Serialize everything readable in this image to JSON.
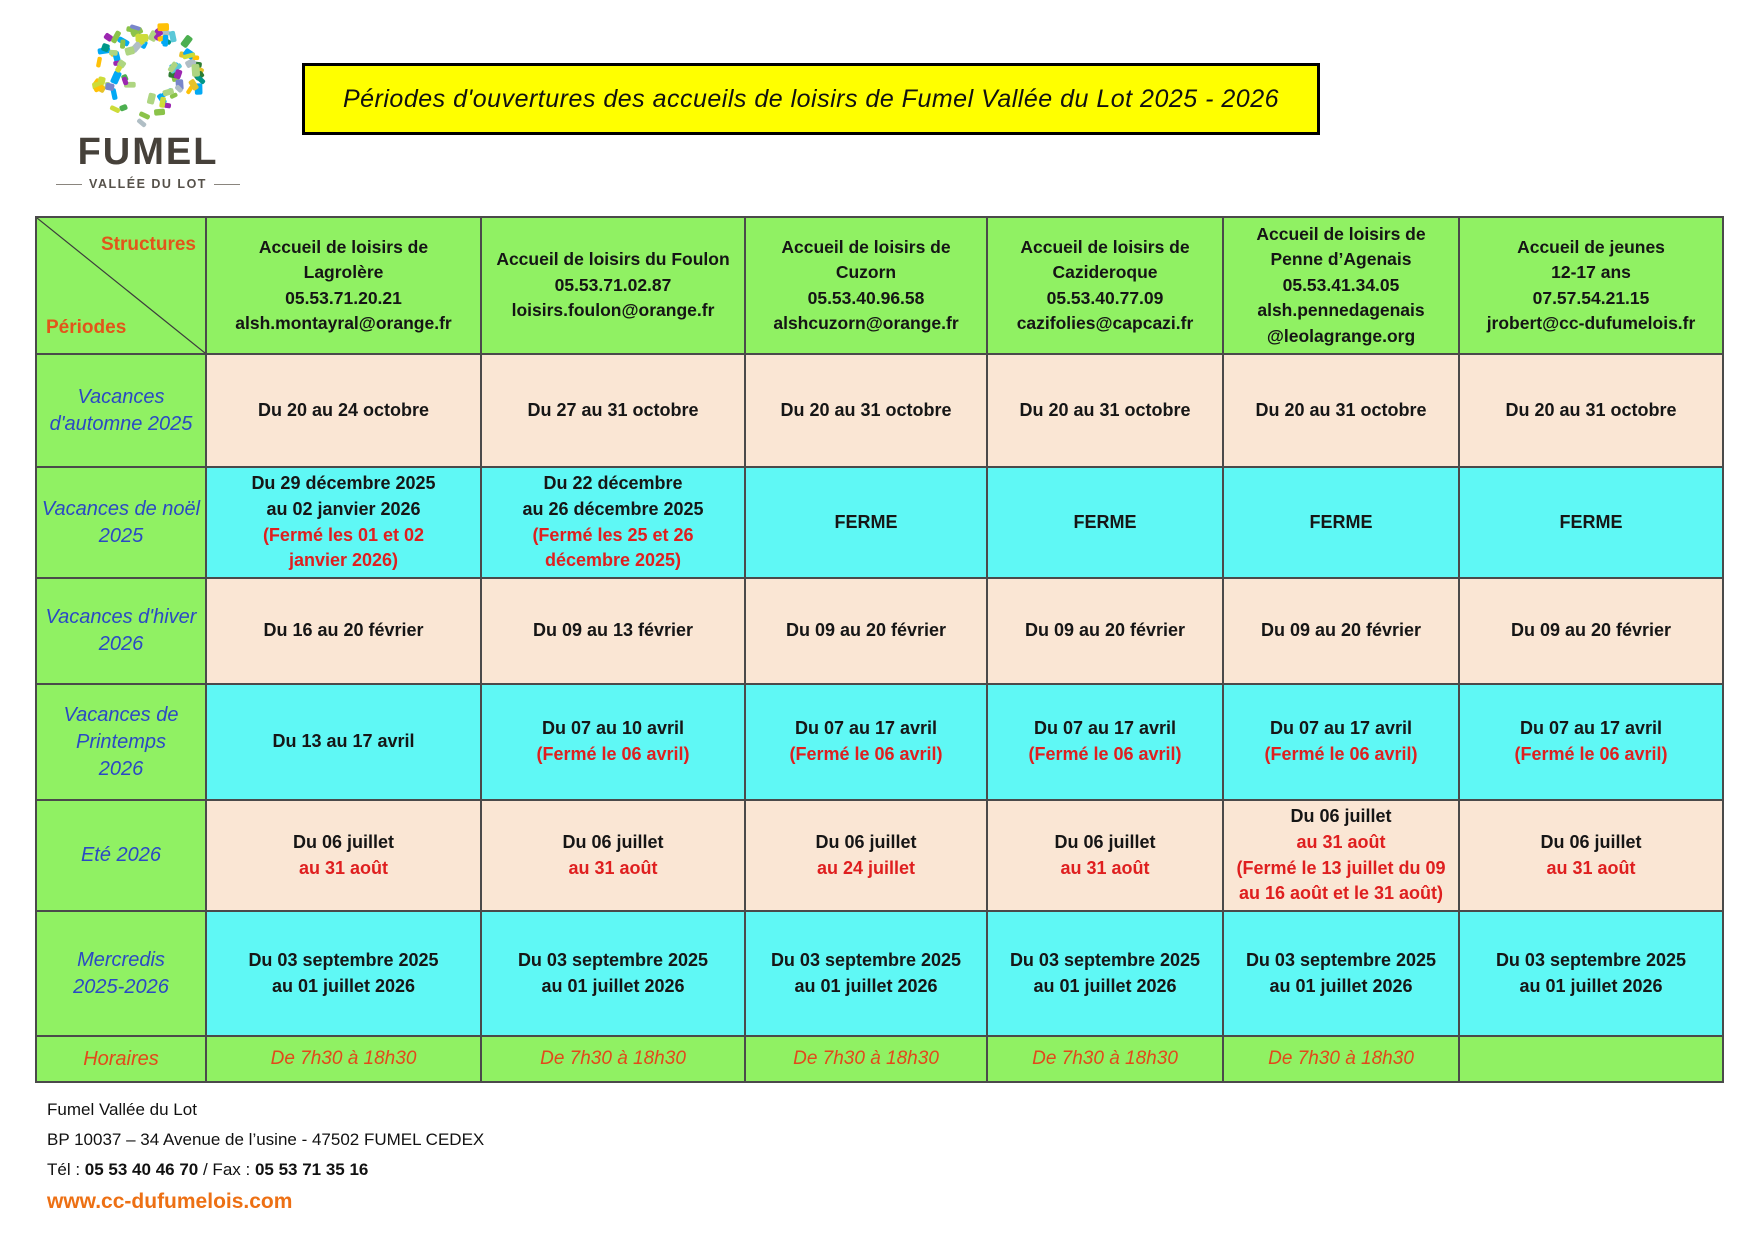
{
  "colors": {
    "green": "#90F163",
    "cyan": "#5FF8F5",
    "peach": "#FAE6D4",
    "yellow": "#FFFF00",
    "red": "#DF1F1F",
    "blue": "#2B49C4",
    "orange": "#E2551A",
    "orange2": "#E2491A",
    "linkorange": "#ED7014"
  },
  "logo": {
    "title": "FUMEL",
    "subtitle": "VALLÉE DU LOT",
    "palette": [
      "#4caf50",
      "#8bc34a",
      "#ffc107",
      "#03a9f4",
      "#009688",
      "#9c27b0",
      "#cddc39",
      "#b0bec5",
      "#2e7d32",
      "#e6c229",
      "#7986cb",
      "#aed581",
      "#5bc8d8"
    ]
  },
  "banner": {
    "title": "Périodes d'ouvertures des accueils de loisirs de Fumel Vallée du Lot 2025 - 2026"
  },
  "table": {
    "corner": {
      "top_label": "Structures",
      "bottom_label": "Périodes"
    },
    "columns": [
      {
        "lines": [
          "Accueil de loisirs de",
          "Lagrolère",
          "05.53.71.20.21",
          "alsh.montayral@orange.fr"
        ]
      },
      {
        "lines": [
          "Accueil de loisirs du Foulon",
          "05.53.71.02.87",
          "loisirs.foulon@orange.fr"
        ]
      },
      {
        "lines": [
          "Accueil de loisirs de",
          "Cuzorn",
          "05.53.40.96.58",
          "alshcuzorn@orange.fr"
        ]
      },
      {
        "lines": [
          "Accueil de loisirs de",
          "Cazideroque",
          "05.53.40.77.09",
          "cazifolies@capcazi.fr"
        ]
      },
      {
        "lines": [
          "Accueil de loisirs de",
          "Penne d’Agenais",
          "05.53.41.34.05",
          "alsh.pennedagenais",
          "@leolagrange.org"
        ]
      },
      {
        "lines": [
          "Accueil de jeunes",
          "12-17 ans",
          "07.57.54.21.15",
          "jrobert@cc-dufumelois.fr"
        ]
      }
    ],
    "rows": [
      {
        "label": "Vacances\nd'automne 2025",
        "bg": "peach",
        "cells": [
          [
            {
              "text": "Du 20 au 24 octobre"
            }
          ],
          [
            {
              "text": "Du 27 au 31 octobre"
            }
          ],
          [
            {
              "text": "Du 20 au 31 octobre"
            }
          ],
          [
            {
              "text": "Du 20 au 31 octobre"
            }
          ],
          [
            {
              "text": "Du 20 au 31 octobre"
            }
          ],
          [
            {
              "text": "Du 20 au 31 octobre"
            }
          ]
        ]
      },
      {
        "label": "Vacances de noël\n2025",
        "bg": "cyan",
        "cells": [
          [
            {
              "text": "Du 29 décembre 2025"
            },
            {
              "text": "au 02 janvier 2026"
            },
            {
              "text": "(Fermé les 01 et 02",
              "style": "red"
            },
            {
              "text": "janvier 2026)",
              "style": "red"
            }
          ],
          [
            {
              "text": "Du 22 décembre"
            },
            {
              "text": "au 26 décembre 2025"
            },
            {
              "text": "(Fermé les 25 et 26",
              "style": "red"
            },
            {
              "text": "décembre 2025)",
              "style": "red"
            }
          ],
          [
            {
              "text": "FERME"
            }
          ],
          [
            {
              "text": "FERME"
            }
          ],
          [
            {
              "text": "FERME"
            }
          ],
          [
            {
              "text": "FERME"
            }
          ]
        ]
      },
      {
        "label": "Vacances d'hiver\n2026",
        "bg": "peach",
        "cells": [
          [
            {
              "text": "Du 16 au 20 février"
            }
          ],
          [
            {
              "text": "Du 09 au 13 février"
            }
          ],
          [
            {
              "text": "Du 09 au 20 février"
            }
          ],
          [
            {
              "text": "Du 09 au 20 février"
            }
          ],
          [
            {
              "text": "Du 09 au 20 février"
            }
          ],
          [
            {
              "text": "Du 09 au 20 février"
            }
          ]
        ]
      },
      {
        "label": "Vacances de\nPrintemps\n2026",
        "bg": "cyan",
        "cells": [
          [
            {
              "text": "Du 13 au 17 avril"
            }
          ],
          [
            {
              "text": "Du 07 au 10 avril"
            },
            {
              "text": "(Fermé le 06 avril)",
              "style": "red"
            }
          ],
          [
            {
              "text": "Du 07 au 17 avril"
            },
            {
              "text": "(Fermé le 06 avril)",
              "style": "red"
            }
          ],
          [
            {
              "text": "Du 07 au 17 avril"
            },
            {
              "text": "(Fermé le 06 avril)",
              "style": "red"
            }
          ],
          [
            {
              "text": "Du 07 au 17 avril"
            },
            {
              "text": "(Fermé le 06 avril)",
              "style": "red"
            }
          ],
          [
            {
              "text": "Du 07 au 17 avril"
            },
            {
              "text": "(Fermé le 06 avril)",
              "style": "red"
            }
          ]
        ]
      },
      {
        "label": "Eté 2026",
        "bg": "peach",
        "cells": [
          [
            {
              "text": "Du 06 juillet"
            },
            {
              "text": "au 31 août",
              "style": "red"
            }
          ],
          [
            {
              "text": "Du 06 juillet"
            },
            {
              "text": "au 31 août",
              "style": "red"
            }
          ],
          [
            {
              "text": "Du 06 juillet"
            },
            {
              "text": "au 24 juillet",
              "style": "red"
            }
          ],
          [
            {
              "text": "Du 06 juillet"
            },
            {
              "text": "au 31 août",
              "style": "red"
            }
          ],
          [
            {
              "text": "Du 06 juillet"
            },
            {
              "text": "au 31 août",
              "style": "red"
            },
            {
              "text": "(Fermé le 13 juillet du 09",
              "style": "red"
            },
            {
              "text": "au 16 août et le 31 août)",
              "style": "red"
            }
          ],
          [
            {
              "text": "Du 06 juillet"
            },
            {
              "text": "au 31 août",
              "style": "red"
            }
          ]
        ]
      },
      {
        "label": "Mercredis\n2025-2026",
        "bg": "cyan",
        "cells": [
          [
            {
              "text": "Du 03 septembre 2025"
            },
            {
              "text": "au 01 juillet 2026"
            }
          ],
          [
            {
              "text": "Du 03 septembre 2025"
            },
            {
              "text": "au 01 juillet 2026"
            }
          ],
          [
            {
              "text": "Du 03 septembre 2025"
            },
            {
              "text": "au 01 juillet 2026"
            }
          ],
          [
            {
              "text": "Du 03 septembre 2025"
            },
            {
              "text": "au 01 juillet 2026"
            }
          ],
          [
            {
              "text": "Du 03 septembre 2025"
            },
            {
              "text": "au 01 juillet 2026"
            }
          ],
          [
            {
              "text": "Du 03 septembre 2025"
            },
            {
              "text": "au 01 juillet 2026"
            }
          ]
        ]
      },
      {
        "label": "Horaires",
        "label_style": "orange",
        "bg": "green",
        "cells": [
          [
            {
              "text": "De 7h30 à 18h30",
              "style": "orange"
            }
          ],
          [
            {
              "text": "De 7h30 à 18h30",
              "style": "orange"
            }
          ],
          [
            {
              "text": "De 7h30 à 18h30",
              "style": "orange"
            }
          ],
          [
            {
              "text": "De 7h30 à 18h30",
              "style": "orange"
            }
          ],
          [
            {
              "text": "De 7h30 à 18h30",
              "style": "orange"
            }
          ],
          []
        ]
      }
    ]
  },
  "footer": {
    "org": "Fumel Vallée du Lot",
    "address": "BP 10037 – 34 Avenue de l’usine - 47502 FUMEL CEDEX",
    "tel_label": "Tél :",
    "tel": "05 53 40 46 70",
    "fax_label": "/ Fax :",
    "fax": "05 53 71 35 16",
    "website": "www.cc-dufumelois.com"
  }
}
